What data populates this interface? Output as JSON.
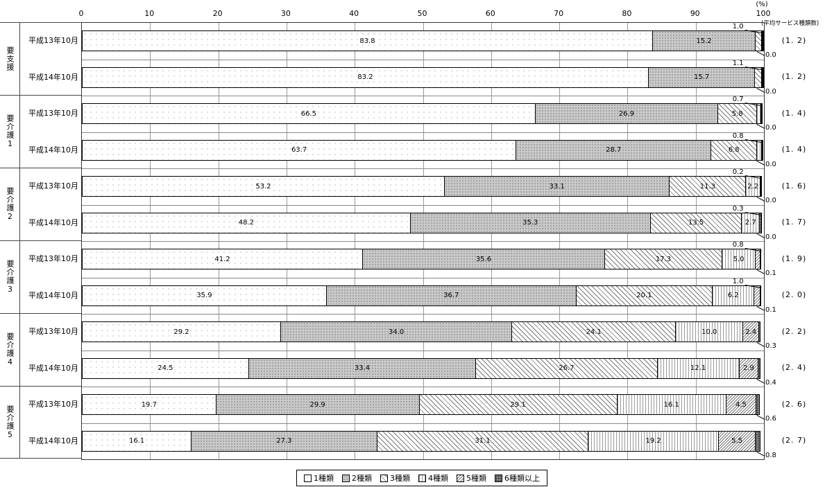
{
  "axis": {
    "unit": "(%)",
    "ticks": [
      "0",
      "10",
      "20",
      "30",
      "40",
      "50",
      "60",
      "70",
      "80",
      "90",
      "100"
    ]
  },
  "right_column": {
    "header": "(平均サービス種類数)"
  },
  "legend": {
    "items": [
      {
        "label": "1種類"
      },
      {
        "label": "2種類"
      },
      {
        "label": "3種類"
      },
      {
        "label": "4種類"
      },
      {
        "label": "5種類"
      },
      {
        "label": "6種類以上"
      }
    ]
  },
  "chart_data": {
    "type": "bar",
    "orientation": "horizontal",
    "stacked": true,
    "unit": "%",
    "xlim": [
      0,
      100
    ],
    "grid": true,
    "legend_position": "bottom",
    "series_names": [
      "1種類",
      "2種類",
      "3種類",
      "4種類",
      "5種類",
      "6種類以上"
    ],
    "groups": [
      {
        "label": "要支援",
        "rows": [
          {
            "period": "平成13年10月",
            "values": [
              83.8,
              15.2,
              1.0,
              0.0,
              0.0,
              0.0
            ],
            "callout_above": "1.0",
            "callout_below": "0.0",
            "avg": "(1. 2)"
          },
          {
            "period": "平成14年10月",
            "values": [
              83.2,
              15.7,
              1.1,
              0.0,
              0.0,
              0.0
            ],
            "callout_above": "1.1",
            "callout_below": "0.0",
            "avg": "(1. 2)"
          }
        ]
      },
      {
        "label": "要介護1",
        "rows": [
          {
            "period": "平成13年10月",
            "values": [
              66.5,
              26.9,
              5.8,
              0.7,
              0.0,
              0.0
            ],
            "callout_above": "0.7",
            "callout_below": "0.0",
            "avg": "(1. 4)"
          },
          {
            "period": "平成14年10月",
            "values": [
              63.7,
              28.7,
              6.8,
              0.8,
              0.0,
              0.0
            ],
            "callout_above": "0.8",
            "callout_below": "0.0",
            "avg": "(1. 4)"
          }
        ]
      },
      {
        "label": "要介護2",
        "rows": [
          {
            "period": "平成13年10月",
            "values": [
              53.2,
              33.1,
              11.3,
              2.2,
              0.2,
              0.0
            ],
            "callout_above": "0.2",
            "callout_below": "0.0",
            "avg": "(1. 6)"
          },
          {
            "period": "平成14年10月",
            "values": [
              48.2,
              35.3,
              13.5,
              2.7,
              0.3,
              0.0
            ],
            "callout_above": "0.3",
            "callout_below": "0.0",
            "avg": "(1. 7)"
          }
        ]
      },
      {
        "label": "要介護3",
        "rows": [
          {
            "period": "平成13年10月",
            "values": [
              41.2,
              35.6,
              17.3,
              5.0,
              0.8,
              0.1
            ],
            "callout_above": "0.8",
            "callout_below": "0.1",
            "avg": "(1. 9)"
          },
          {
            "period": "平成14年10月",
            "values": [
              35.9,
              36.7,
              20.1,
              6.2,
              1.0,
              0.1
            ],
            "callout_above": "1.0",
            "callout_below": "0.1",
            "avg": "(2. 0)"
          }
        ]
      },
      {
        "label": "要介護4",
        "rows": [
          {
            "period": "平成13年10月",
            "values": [
              29.2,
              34.0,
              24.1,
              10.0,
              2.4,
              0.3
            ],
            "callout_above": null,
            "callout_below": "0.3",
            "avg": "(2. 2)"
          },
          {
            "period": "平成14年10月",
            "values": [
              24.5,
              33.4,
              26.7,
              12.1,
              2.9,
              0.4
            ],
            "callout_above": null,
            "callout_below": "0.4",
            "avg": "(2. 4)"
          }
        ]
      },
      {
        "label": "要介護5",
        "rows": [
          {
            "period": "平成13年10月",
            "values": [
              19.7,
              29.9,
              29.1,
              16.1,
              4.5,
              0.6
            ],
            "callout_above": null,
            "callout_below": "0.6",
            "avg": "(2. 6)"
          },
          {
            "period": "平成14年10月",
            "values": [
              16.1,
              27.3,
              31.1,
              19.2,
              5.5,
              0.8
            ],
            "callout_above": null,
            "callout_below": "0.8",
            "avg": "(2. 7)"
          }
        ]
      }
    ]
  }
}
